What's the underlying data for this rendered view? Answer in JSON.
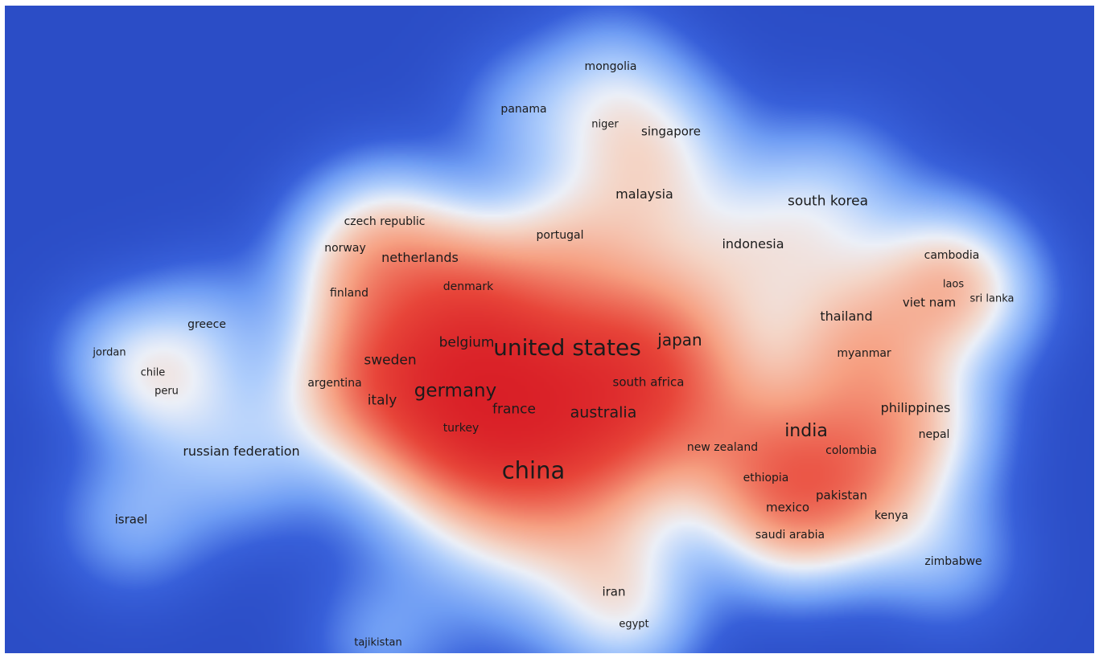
{
  "colors": {
    "background": "#2b4dc6",
    "low_density": "#6f9df4",
    "mid_density": "#f4d6c8",
    "high_density": "#d3101f",
    "label_text": "#1b1b1b"
  },
  "items": [
    {
      "label": "china",
      "weight": 1.0
    },
    {
      "label": "united states",
      "weight": 0.96
    },
    {
      "label": "germany",
      "weight": 0.62
    },
    {
      "label": "india",
      "weight": 0.58
    },
    {
      "label": "japan",
      "weight": 0.45
    },
    {
      "label": "australia",
      "weight": 0.42
    },
    {
      "label": "belgium",
      "weight": 0.3
    },
    {
      "label": "france",
      "weight": 0.3
    },
    {
      "label": "sweden",
      "weight": 0.32
    },
    {
      "label": "italy",
      "weight": 0.28
    },
    {
      "label": "south korea",
      "weight": 0.32
    },
    {
      "label": "russian federation",
      "weight": 0.26
    },
    {
      "label": "malaysia",
      "weight": 0.26
    },
    {
      "label": "philippines",
      "weight": 0.22
    },
    {
      "label": "thailand",
      "weight": 0.24
    },
    {
      "label": "netherlands",
      "weight": 0.24
    },
    {
      "label": "indonesia",
      "weight": 0.22
    },
    {
      "label": "south africa",
      "weight": 0.18
    },
    {
      "label": "singapore",
      "weight": 0.18
    },
    {
      "label": "viet nam",
      "weight": 0.2
    },
    {
      "label": "israel",
      "weight": 0.18
    },
    {
      "label": "iran",
      "weight": 0.18
    },
    {
      "label": "mexico",
      "weight": 0.18
    },
    {
      "label": "pakistan",
      "weight": 0.18
    },
    {
      "label": "new zealand",
      "weight": 0.14
    },
    {
      "label": "turkey",
      "weight": 0.14
    },
    {
      "label": "denmark",
      "weight": 0.14
    },
    {
      "label": "finland",
      "weight": 0.14
    },
    {
      "label": "norway",
      "weight": 0.14
    },
    {
      "label": "czech republic",
      "weight": 0.12
    },
    {
      "label": "kenya",
      "weight": 0.14
    },
    {
      "label": "ethiopia",
      "weight": 0.12
    },
    {
      "label": "nepal",
      "weight": 0.12
    },
    {
      "label": "colombia",
      "weight": 0.1
    },
    {
      "label": "cambodia",
      "weight": 0.1
    },
    {
      "label": "greece",
      "weight": 0.1
    },
    {
      "label": "myanmar",
      "weight": 0.1
    },
    {
      "label": "argentina",
      "weight": 0.1
    },
    {
      "label": "saudi arabia",
      "weight": 0.1
    },
    {
      "label": "panama",
      "weight": 0.1
    },
    {
      "label": "niger",
      "weight": 0.08
    },
    {
      "label": "mongolia",
      "weight": 0.1
    },
    {
      "label": "portugal",
      "weight": 0.1
    },
    {
      "label": "jordan",
      "weight": 0.08
    },
    {
      "label": "chile",
      "weight": 0.08
    },
    {
      "label": "peru",
      "weight": 0.08
    },
    {
      "label": "laos",
      "weight": 0.08
    },
    {
      "label": "sri lanka",
      "weight": 0.08
    },
    {
      "label": "zimbabwe",
      "weight": 0.1
    },
    {
      "label": "egypt",
      "weight": 0.08
    },
    {
      "label": "tajikistan",
      "weight": 0.08
    }
  ]
}
